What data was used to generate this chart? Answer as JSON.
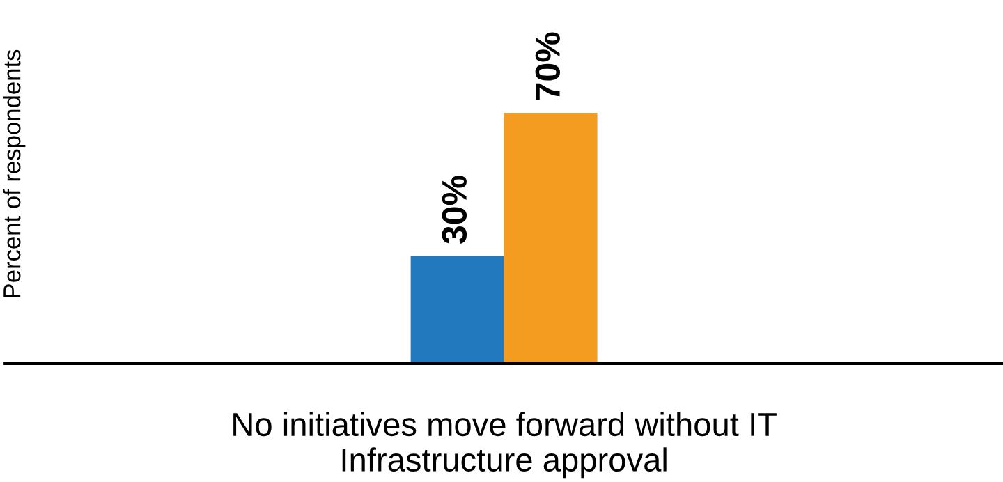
{
  "chart_data": {
    "type": "bar",
    "annotations": [
      "Percent of respondents"
    ],
    "categories": [
      "No initiatives move forward without IT\nInfrastructure approval"
    ],
    "series": [
      {
        "color": "#2379be",
        "values": [
          30
        ],
        "value_labels": [
          "30%"
        ]
      },
      {
        "color": "#f49c20",
        "values": [
          70
        ],
        "value_labels": [
          "70%"
        ]
      }
    ],
    "grid": false,
    "legend": false
  }
}
